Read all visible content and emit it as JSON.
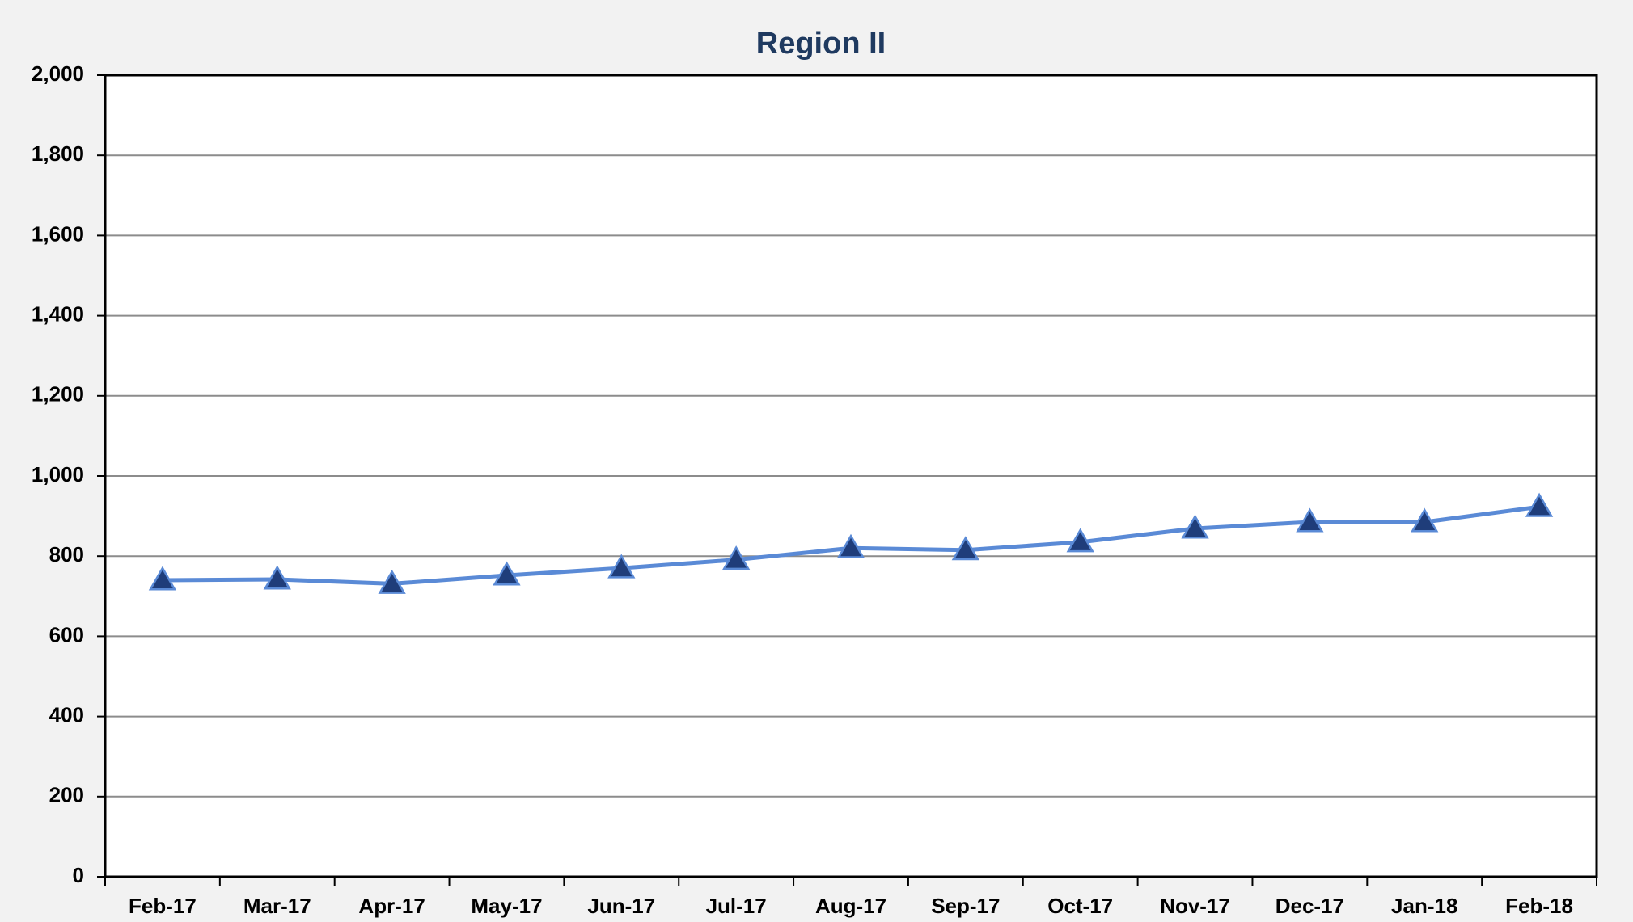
{
  "chart_data": {
    "type": "line",
    "title": "Region II",
    "categories": [
      "Feb-17",
      "Mar-17",
      "Apr-17",
      "May-17",
      "Jun-17",
      "Jul-17",
      "Aug-17",
      "Sep-17",
      "Oct-17",
      "Nov-17",
      "Dec-17",
      "Jan-18",
      "Feb-18"
    ],
    "series": [
      {
        "name": "Region II",
        "color": "#5a8ad6",
        "marker_color": "#1f3d7a",
        "values": [
          740,
          742,
          731,
          752,
          770,
          791,
          820,
          815,
          835,
          869,
          885,
          885,
          923
        ]
      }
    ],
    "ylim": [
      0,
      2000
    ],
    "yticks": [
      0,
      200,
      400,
      600,
      800,
      {
        "value": 1000,
        "label": "1,000"
      },
      {
        "value": 1200,
        "label": "1,200"
      },
      {
        "value": 1400,
        "label": "1,400"
      },
      {
        "value": 1600,
        "label": "1,600"
      },
      {
        "value": 1800,
        "label": "1,800"
      },
      {
        "value": 2000,
        "label": "2,000"
      }
    ],
    "grid": true
  }
}
